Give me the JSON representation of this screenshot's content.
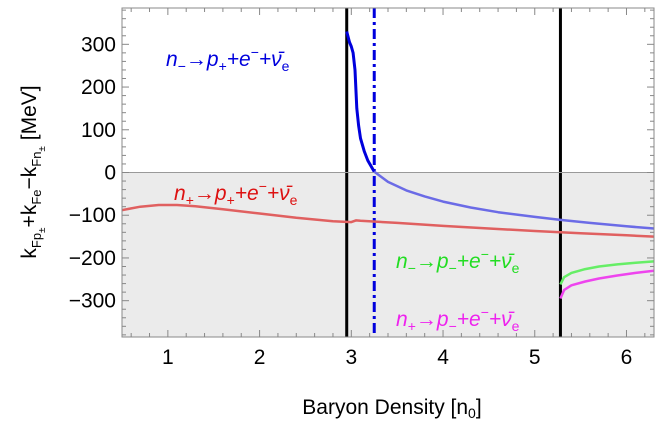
{
  "chart_data": {
    "type": "line",
    "xlabel": "Baryon Density [n",
    "xlabel_sub": "0",
    "xlabel_end": "]",
    "ylabel": "k",
    "ylabel_full": "kFp± + kFe − kFn± [MeV]",
    "xlim": [
      0.5,
      6.3
    ],
    "ylim": [
      -385,
      385
    ],
    "x_ticks": [
      1,
      2,
      3,
      4,
      5,
      6
    ],
    "y_ticks": [
      -300,
      -200,
      -100,
      0,
      100,
      200,
      300
    ],
    "shaded_region": {
      "from": -385,
      "to": 0,
      "color": "#ebebeb"
    },
    "vertical_lines": [
      {
        "x": 2.95,
        "style": "solid",
        "color": "#000000"
      },
      {
        "x": 3.25,
        "style": "dashdot",
        "color": "#0000dd"
      },
      {
        "x": 5.28,
        "style": "solid",
        "color": "#000000"
      }
    ],
    "series": [
      {
        "name": "n−→p++e−+ν̄e",
        "color": "#0000dd",
        "points": [
          [
            2.95,
            330
          ],
          [
            2.98,
            305
          ],
          [
            3.0,
            295
          ],
          [
            3.02,
            280
          ],
          [
            3.04,
            240
          ],
          [
            3.06,
            150
          ],
          [
            3.08,
            110
          ],
          [
            3.1,
            80
          ],
          [
            3.14,
            50
          ],
          [
            3.18,
            28
          ],
          [
            3.25,
            2
          ]
        ]
      },
      {
        "name": "n−→p++e−+ν̄e",
        "color": "#6b6be6",
        "points": [
          [
            3.25,
            2
          ],
          [
            3.4,
            -22
          ],
          [
            3.6,
            -42
          ],
          [
            3.8,
            -56
          ],
          [
            4.0,
            -68
          ],
          [
            4.3,
            -82
          ],
          [
            4.6,
            -93
          ],
          [
            5.0,
            -104
          ],
          [
            5.28,
            -111
          ],
          [
            5.6,
            -118
          ],
          [
            6.0,
            -126
          ],
          [
            6.3,
            -131
          ]
        ]
      },
      {
        "name": "n+→p++e−+ν̄e",
        "color": "#e06060",
        "points": [
          [
            0.5,
            -88
          ],
          [
            0.7,
            -80
          ],
          [
            0.9,
            -76
          ],
          [
            1.1,
            -76
          ],
          [
            1.3,
            -79
          ],
          [
            1.6,
            -86
          ],
          [
            2.0,
            -96
          ],
          [
            2.4,
            -106
          ],
          [
            2.8,
            -114
          ],
          [
            3.0,
            -116
          ],
          [
            3.05,
            -112
          ],
          [
            3.1,
            -113
          ],
          [
            3.5,
            -118
          ],
          [
            4.0,
            -125
          ],
          [
            4.5,
            -131
          ],
          [
            5.0,
            -137
          ],
          [
            5.5,
            -142
          ],
          [
            6.0,
            -147
          ],
          [
            6.3,
            -150
          ]
        ]
      },
      {
        "name": "n−→p−+e−+ν̄e",
        "color": "#66ee66",
        "points": [
          [
            5.28,
            -262
          ],
          [
            5.32,
            -245
          ],
          [
            5.4,
            -235
          ],
          [
            5.55,
            -226
          ],
          [
            5.7,
            -220
          ],
          [
            5.9,
            -215
          ],
          [
            6.1,
            -211
          ],
          [
            6.3,
            -208
          ]
        ]
      },
      {
        "name": "n+→p−+e−+ν̄e",
        "color": "#ee44ee",
        "points": [
          [
            5.28,
            -295
          ],
          [
            5.32,
            -275
          ],
          [
            5.4,
            -264
          ],
          [
            5.55,
            -255
          ],
          [
            5.7,
            -248
          ],
          [
            5.9,
            -241
          ],
          [
            6.1,
            -235
          ],
          [
            6.3,
            -230
          ]
        ]
      }
    ],
    "annotations": [
      {
        "id": "blue",
        "color": "#0000dd",
        "n_sub": "−",
        "p_sub": "+",
        "text": "n−→p++e−+ν̄e"
      },
      {
        "id": "red",
        "color": "#dd1111",
        "n_sub": "+",
        "p_sub": "+",
        "text": "n+→p++e−+ν̄e"
      },
      {
        "id": "green",
        "color": "#22dd22",
        "n_sub": "−",
        "p_sub": "−",
        "text": "n−→p−+e−+ν̄e"
      },
      {
        "id": "magenta",
        "color": "#ee22ee",
        "n_sub": "+",
        "p_sub": "−",
        "text": "n+→p−+e−+ν̄e"
      }
    ]
  }
}
